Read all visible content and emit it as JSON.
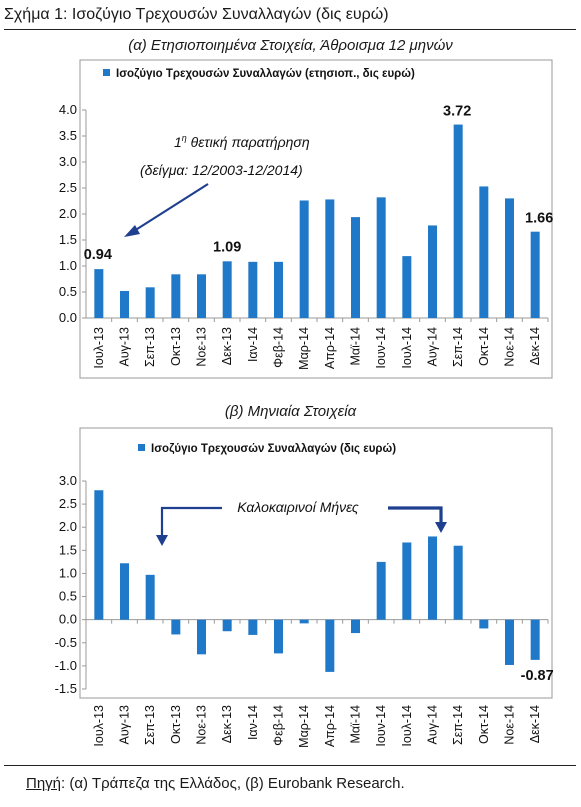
{
  "figure_title": "Σχήμα 1: Ισοζύγιο Τρεχουσών Συναλλαγών (δις ευρώ)",
  "source_label": "Πηγή",
  "source_text": ": (α) Τράπεζα της Ελλάδος, (β) Eurobank Research.",
  "colors": {
    "bar": "#1f78c8",
    "annotation": "#1f3f8f",
    "axis": "#9a9a9a"
  },
  "chart_data": [
    {
      "type": "bar",
      "title": "(α) Ετησιοποιημένα Στοιχεία, Άθροισμα 12 μηνών",
      "series": [
        {
          "name": "Ισοζύγιο Τρεχουσών Συναλλαγών (ετησιοπ., δις ευρώ)",
          "values": [
            0.94,
            0.52,
            0.59,
            0.84,
            0.84,
            1.09,
            1.08,
            1.08,
            2.26,
            2.28,
            1.94,
            2.32,
            1.19,
            1.78,
            3.72,
            2.53,
            2.3,
            1.66
          ]
        }
      ],
      "categories": [
        "Ιουλ-13",
        "Αυγ-13",
        "Σεπ-13",
        "Οκτ-13",
        "Νοε-13",
        "Δεκ-13",
        "Ιαν-14",
        "Φεβ-14",
        "Μαρ-14",
        "Απρ-14",
        "Μαϊ-14",
        "Ιουν-14",
        "Ιουλ-14",
        "Αυγ-14",
        "Σεπ-14",
        "Οκτ-14",
        "Νοε-14",
        "Δεκ-14"
      ],
      "ylim": [
        0,
        4
      ],
      "yticks": [
        "0.0",
        "0.5",
        "1.0",
        "1.5",
        "2.0",
        "2.5",
        "3.0",
        "3.5",
        "4.0"
      ],
      "data_labels": [
        {
          "index": 0,
          "text": "0.94"
        },
        {
          "index": 5,
          "text": "1.09"
        },
        {
          "index": 14,
          "text": "3.72"
        },
        {
          "index": 17,
          "text": "1.66"
        }
      ],
      "annotation": {
        "line1": "1",
        "sup": "η",
        "line1_rest": " θετική παρατήρηση",
        "line2": "(δείγμα: 12/2003-12/2014)"
      },
      "legend_position": "top",
      "grid": false
    },
    {
      "type": "bar",
      "title": "(β) Μηνιαία Στοιχεία",
      "series": [
        {
          "name": "Ισοζύγιο Τρεχουσών Συναλλαγών (δις ευρώ)",
          "values": [
            2.8,
            1.22,
            0.97,
            -0.32,
            -0.75,
            -0.25,
            -0.33,
            -0.73,
            -0.08,
            -1.13,
            -0.29,
            1.25,
            1.67,
            1.8,
            1.6,
            -0.19,
            -0.98,
            -0.87
          ]
        }
      ],
      "categories": [
        "Ιουλ-13",
        "Αυγ-13",
        "Σεπ-13",
        "Οκτ-13",
        "Νοε-13",
        "Δεκ-13",
        "Ιαν-14",
        "Φεβ-14",
        "Μαρ-14",
        "Απρ-14",
        "Μαϊ-14",
        "Ιουν-14",
        "Ιουλ-14",
        "Αυγ-14",
        "Σεπ-14",
        "Οκτ-14",
        "Νοε-14",
        "Δεκ-14"
      ],
      "ylim": [
        -1.5,
        3
      ],
      "yticks": [
        "-1.5",
        "-1.0",
        "-0.5",
        "0.0",
        "0.5",
        "1.0",
        "1.5",
        "2.0",
        "2.5",
        "3.0"
      ],
      "data_labels": [
        {
          "index": 17,
          "text": "-0.87"
        }
      ],
      "annotation": {
        "text": "Καλοκαιρινοί Μήνες"
      },
      "legend_position": "top",
      "grid": false
    }
  ]
}
